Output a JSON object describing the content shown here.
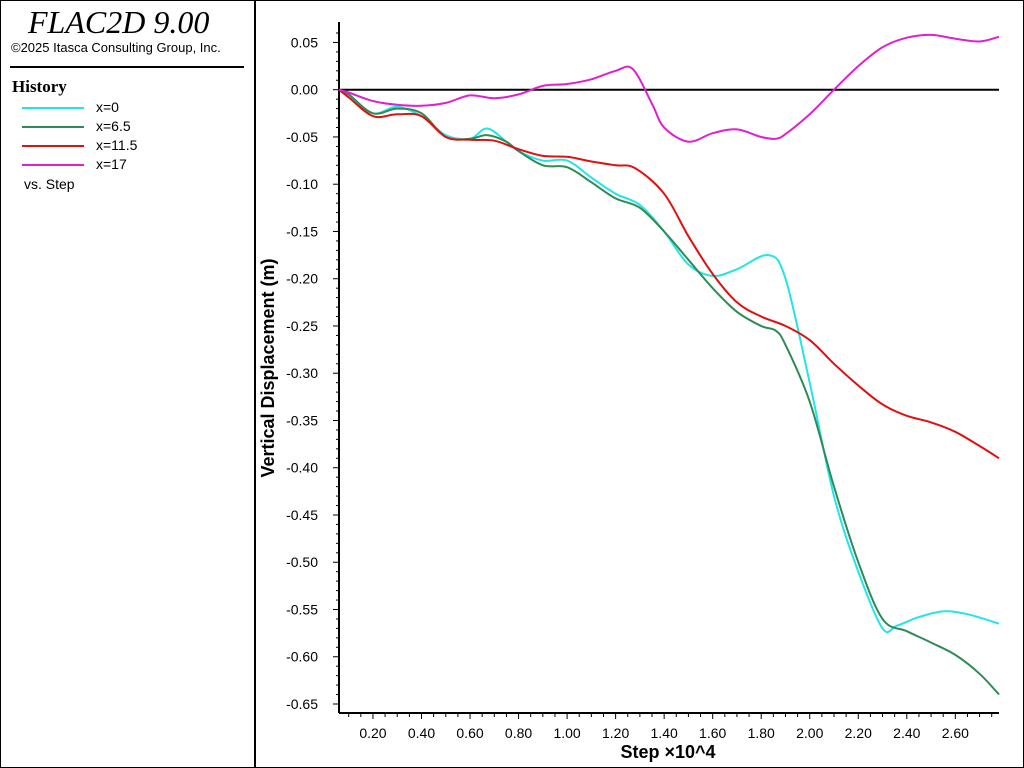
{
  "app": {
    "title": "FLAC2D 9.00",
    "copyright": "©2025 Itasca Consulting Group, Inc."
  },
  "legend": {
    "heading": "History",
    "items": [
      {
        "label": "x=0",
        "color": "#22e5e5"
      },
      {
        "label": "x=6.5",
        "color": "#2e8b57"
      },
      {
        "label": "x=11.5",
        "color": "#e01010"
      },
      {
        "label": "x=17",
        "color": "#e020d0"
      }
    ],
    "footer": "vs. Step"
  },
  "chart_data": {
    "type": "line",
    "xlabel": "Step ×10^4",
    "ylabel": "Vertical Displacement (m)",
    "xlim": [
      0.06,
      2.78
    ],
    "ylim": [
      -0.65,
      0.06
    ],
    "x_ticks": [
      "0.20",
      "0.40",
      "0.60",
      "0.80",
      "1.00",
      "1.20",
      "1.40",
      "1.60",
      "1.80",
      "2.00",
      "2.20",
      "2.40",
      "2.60"
    ],
    "y_ticks": [
      "0.05",
      "0.00",
      "-0.05",
      "-0.10",
      "-0.15",
      "-0.20",
      "-0.25",
      "-0.30",
      "-0.35",
      "-0.40",
      "-0.45",
      "-0.50",
      "-0.55",
      "-0.60",
      "-0.65"
    ],
    "zero_line": true,
    "grid": false,
    "series": [
      {
        "name": "x=0",
        "x": [
          0.06,
          0.1,
          0.2,
          0.3,
          0.4,
          0.5,
          0.6,
          0.67,
          0.75,
          0.8,
          0.9,
          1.0,
          1.1,
          1.2,
          1.3,
          1.4,
          1.5,
          1.6,
          1.7,
          1.83,
          1.9,
          2.0,
          2.1,
          2.2,
          2.3,
          2.36,
          2.45,
          2.55,
          2.65,
          2.78
        ],
        "y": [
          0.0,
          -0.005,
          -0.025,
          -0.018,
          -0.028,
          -0.048,
          -0.052,
          -0.041,
          -0.055,
          -0.065,
          -0.075,
          -0.075,
          -0.093,
          -0.11,
          -0.122,
          -0.15,
          -0.185,
          -0.197,
          -0.19,
          -0.175,
          -0.2,
          -0.31,
          -0.43,
          -0.51,
          -0.57,
          -0.567,
          -0.558,
          -0.552,
          -0.555,
          -0.565
        ]
      },
      {
        "name": "x=6.5",
        "x": [
          0.06,
          0.1,
          0.2,
          0.3,
          0.4,
          0.5,
          0.6,
          0.67,
          0.75,
          0.8,
          0.9,
          1.0,
          1.1,
          1.2,
          1.3,
          1.4,
          1.5,
          1.6,
          1.7,
          1.8,
          1.86,
          1.9,
          2.0,
          2.1,
          2.2,
          2.3,
          2.4,
          2.5,
          2.6,
          2.7,
          2.78
        ],
        "y": [
          0.0,
          -0.005,
          -0.025,
          -0.02,
          -0.025,
          -0.05,
          -0.052,
          -0.048,
          -0.055,
          -0.065,
          -0.08,
          -0.082,
          -0.098,
          -0.115,
          -0.125,
          -0.15,
          -0.18,
          -0.21,
          -0.235,
          -0.25,
          -0.255,
          -0.27,
          -0.33,
          -0.42,
          -0.5,
          -0.56,
          -0.573,
          -0.585,
          -0.598,
          -0.618,
          -0.64
        ]
      },
      {
        "name": "x=11.5",
        "x": [
          0.06,
          0.1,
          0.2,
          0.3,
          0.4,
          0.5,
          0.6,
          0.7,
          0.8,
          0.9,
          1.0,
          1.1,
          1.2,
          1.28,
          1.4,
          1.5,
          1.6,
          1.7,
          1.8,
          1.9,
          2.0,
          2.1,
          2.2,
          2.3,
          2.4,
          2.5,
          2.6,
          2.7,
          2.78
        ],
        "y": [
          0.0,
          -0.008,
          -0.028,
          -0.026,
          -0.028,
          -0.05,
          -0.053,
          -0.054,
          -0.063,
          -0.07,
          -0.071,
          -0.076,
          -0.08,
          -0.083,
          -0.11,
          -0.155,
          -0.195,
          -0.225,
          -0.24,
          -0.25,
          -0.265,
          -0.29,
          -0.313,
          -0.333,
          -0.345,
          -0.352,
          -0.362,
          -0.377,
          -0.39
        ]
      },
      {
        "name": "x=17",
        "x": [
          0.06,
          0.1,
          0.2,
          0.3,
          0.4,
          0.5,
          0.6,
          0.7,
          0.8,
          0.9,
          1.0,
          1.1,
          1.2,
          1.27,
          1.35,
          1.4,
          1.5,
          1.6,
          1.7,
          1.8,
          1.86,
          1.9,
          2.0,
          2.1,
          2.2,
          2.3,
          2.4,
          2.5,
          2.6,
          2.7,
          2.78
        ],
        "y": [
          0.0,
          -0.003,
          -0.012,
          -0.016,
          -0.017,
          -0.014,
          -0.006,
          -0.009,
          -0.005,
          0.004,
          0.006,
          0.011,
          0.02,
          0.022,
          -0.015,
          -0.04,
          -0.055,
          -0.046,
          -0.042,
          -0.05,
          -0.052,
          -0.047,
          -0.026,
          0.0,
          0.025,
          0.045,
          0.055,
          0.058,
          0.054,
          0.051,
          0.056
        ]
      }
    ]
  }
}
